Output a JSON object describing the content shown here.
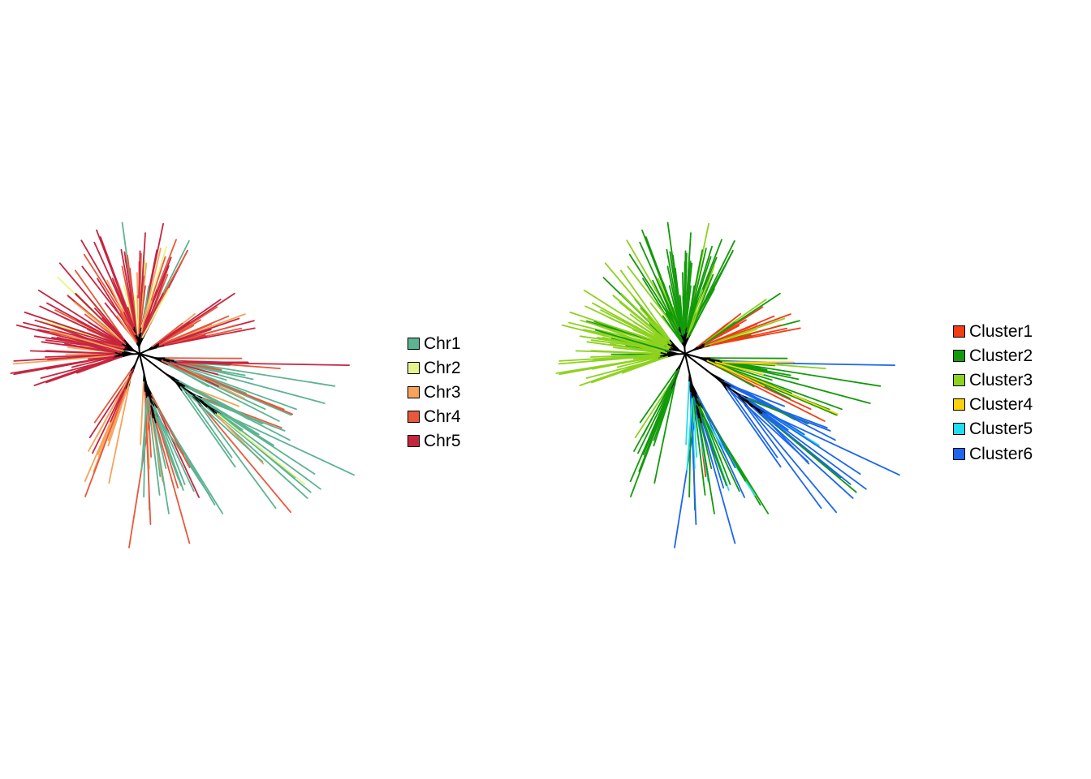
{
  "panels": [
    {
      "legend": [
        {
          "label": "Chr1",
          "color": "#5db392"
        },
        {
          "label": "Chr2",
          "color": "#e6f58a"
        },
        {
          "label": "Chr3",
          "color": "#f7a35a"
        },
        {
          "label": "Chr4",
          "color": "#e8583b"
        },
        {
          "label": "Chr5",
          "color": "#c62540"
        }
      ]
    },
    {
      "legend": [
        {
          "label": "Cluster1",
          "color": "#f23c14"
        },
        {
          "label": "Cluster2",
          "color": "#139a0a"
        },
        {
          "label": "Cluster3",
          "color": "#8dd21f"
        },
        {
          "label": "Cluster4",
          "color": "#f8d20f"
        },
        {
          "label": "Cluster5",
          "color": "#22dcf0"
        },
        {
          "label": "Cluster6",
          "color": "#1b66ee"
        }
      ]
    }
  ],
  "branch_color": "#000000"
}
